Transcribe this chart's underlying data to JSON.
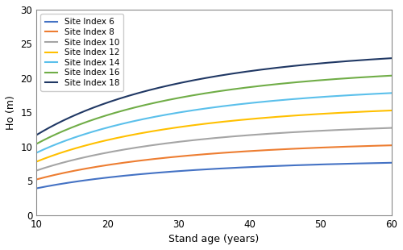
{
  "series": [
    {
      "label": "Site Index 6",
      "SI": 6,
      "color": "#4472C4"
    },
    {
      "label": "Site Index 8",
      "SI": 8,
      "color": "#ED7D31"
    },
    {
      "label": "Site Index 10",
      "SI": 10,
      "color": "#A5A5A5"
    },
    {
      "label": "Site Index 12",
      "SI": 12,
      "color": "#FFC000"
    },
    {
      "label": "Site Index 14",
      "SI": 14,
      "color": "#5BC0EB"
    },
    {
      "label": "Site Index 16",
      "SI": 16,
      "color": "#70AD47"
    },
    {
      "label": "Site Index 18",
      "SI": 18,
      "color": "#203864"
    }
  ],
  "age_min": 10,
  "age_max": 60,
  "ylim": [
    0,
    30
  ],
  "yticks": [
    0,
    5,
    10,
    15,
    20,
    25,
    30
  ],
  "xticks": [
    10,
    20,
    30,
    40,
    50,
    60
  ],
  "xlabel": "Stand age (years)",
  "ylabel": "Ho (m)",
  "b": 0.065,
  "c": 0.55,
  "ref_age": 50,
  "background_color": "#ffffff",
  "legend_fontsize": 7.5,
  "axis_fontsize": 9,
  "tick_fontsize": 8.5
}
